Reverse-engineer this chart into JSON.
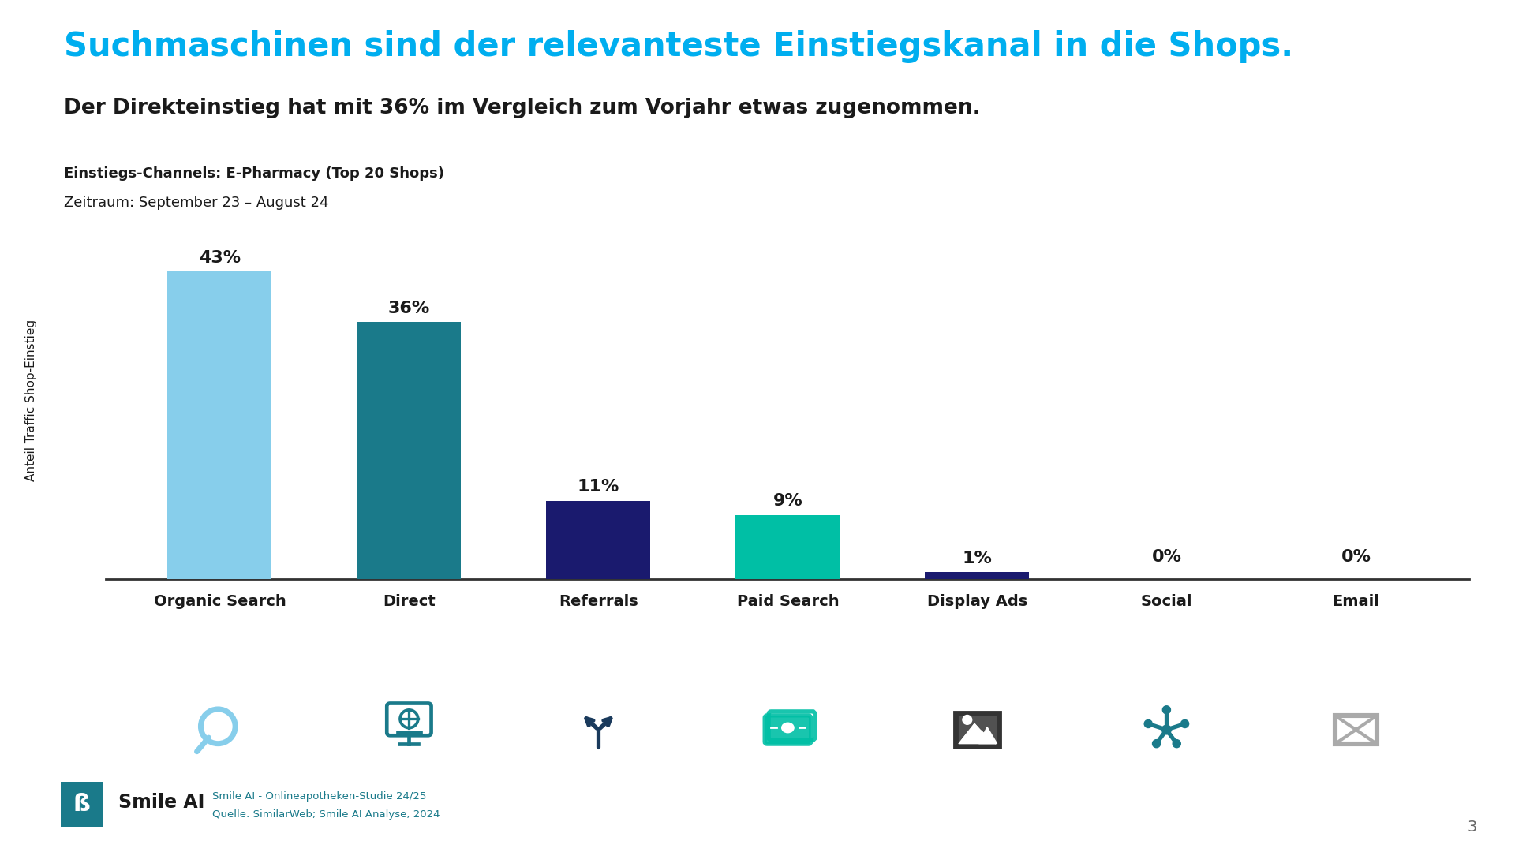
{
  "title": "Suchmaschinen sind der relevanteste Einstiegskanal in die Shops.",
  "subtitle": "Der Direkteinstieg hat mit 36% im Vergleich zum Vorjahr etwas zugenommen.",
  "chart_label_bold": "Einstiegs-Channels: E-Pharmacy (Top 20 Shops)",
  "chart_label_normal": "Zeitraum: September 23 – August 24",
  "ylabel": "Anteil Traffic Shop-Einstieg",
  "categories": [
    "Organic Search",
    "Direct",
    "Referrals",
    "Paid Search",
    "Display Ads",
    "Social",
    "Email"
  ],
  "values": [
    43,
    36,
    11,
    9,
    1,
    0,
    0
  ],
  "labels": [
    "43%",
    "36%",
    "11%",
    "9%",
    "1%",
    "0%",
    "0%"
  ],
  "bar_colors": [
    "#87CEEB",
    "#1A7A8A",
    "#1A1A6E",
    "#00BFA5",
    "#1A1A6E",
    "#1A7A8A",
    "#B0C0C0"
  ],
  "icon_colors": [
    "#87CEEB",
    "#1A7A8A",
    "#1A3A5C",
    "#00BFA5",
    "#333333",
    "#1A7A8A",
    "#AAAAAA"
  ],
  "title_color": "#00AEEF",
  "subtitle_color": "#1a1a1a",
  "background_color": "#FFFFFF",
  "source_line1": "Smile AI - Onlineapotheken-Studie 24/25",
  "source_line2": "Quelle: SimilarWeb; Smile AI Analyse, 2024",
  "page_number": "3",
  "ylim": [
    0,
    50
  ]
}
